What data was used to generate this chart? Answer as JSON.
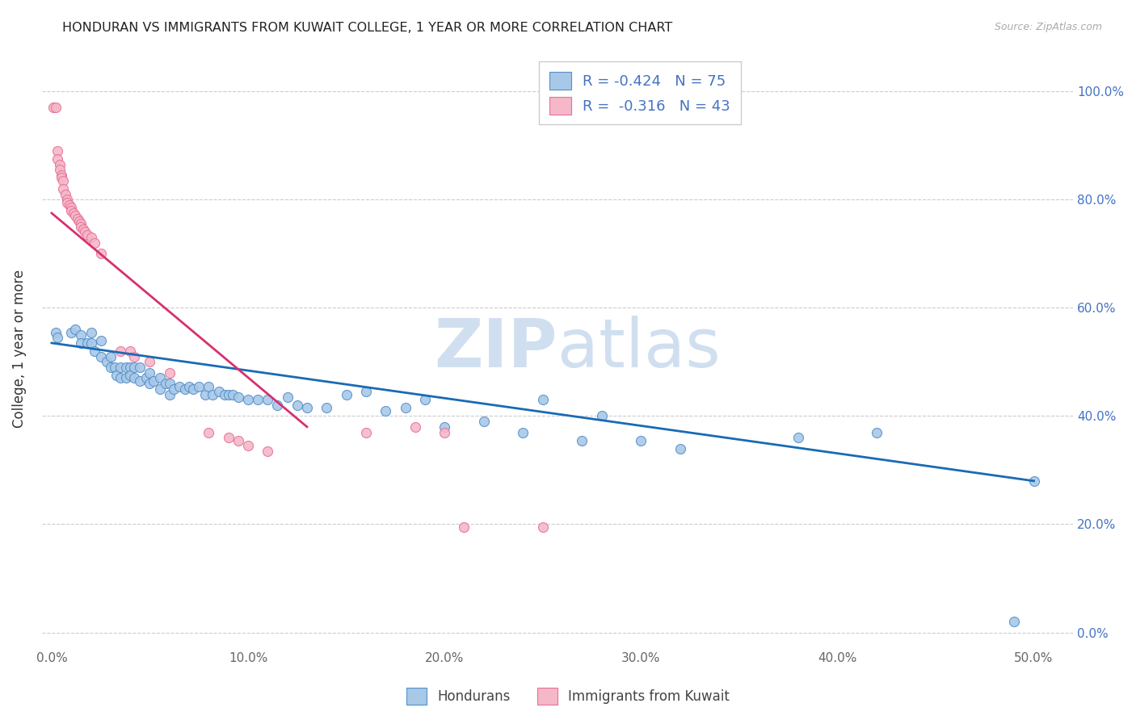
{
  "title": "HONDURAN VS IMMIGRANTS FROM KUWAIT COLLEGE, 1 YEAR OR MORE CORRELATION CHART",
  "source": "Source: ZipAtlas.com",
  "xlabel_ticks": [
    "0.0%",
    "10.0%",
    "20.0%",
    "30.0%",
    "40.0%",
    "50.0%"
  ],
  "ylabel_left_ticks": [
    "",
    "",
    "",
    "",
    "",
    ""
  ],
  "ylabel_right_ticks": [
    "0.0%",
    "20.0%",
    "40.0%",
    "60.0%",
    "80.0%",
    "100.0%"
  ],
  "xlim": [
    -0.005,
    0.52
  ],
  "ylim": [
    -0.03,
    1.08
  ],
  "ylabel": "College, 1 year or more",
  "legend_label1": "Hondurans",
  "legend_label2": "Immigrants from Kuwait",
  "R1": "-0.424",
  "N1": "75",
  "R2": "-0.316",
  "N2": "43",
  "blue_color": "#a8c8e8",
  "pink_color": "#f4b8c8",
  "blue_edge_color": "#5590c8",
  "pink_edge_color": "#e87098",
  "blue_line_color": "#1a6ab5",
  "pink_line_color": "#d83070",
  "watermark_color": "#d0dff0",
  "blue_scatter_x": [
    0.002,
    0.003,
    0.01,
    0.012,
    0.015,
    0.015,
    0.018,
    0.02,
    0.02,
    0.022,
    0.025,
    0.025,
    0.028,
    0.03,
    0.03,
    0.032,
    0.033,
    0.035,
    0.035,
    0.038,
    0.038,
    0.04,
    0.04,
    0.042,
    0.042,
    0.045,
    0.045,
    0.048,
    0.05,
    0.05,
    0.052,
    0.055,
    0.055,
    0.058,
    0.06,
    0.06,
    0.062,
    0.065,
    0.068,
    0.07,
    0.072,
    0.075,
    0.078,
    0.08,
    0.082,
    0.085,
    0.088,
    0.09,
    0.092,
    0.095,
    0.1,
    0.105,
    0.11,
    0.115,
    0.12,
    0.125,
    0.13,
    0.14,
    0.15,
    0.16,
    0.17,
    0.18,
    0.19,
    0.2,
    0.22,
    0.24,
    0.25,
    0.27,
    0.28,
    0.3,
    0.32,
    0.38,
    0.42,
    0.49,
    0.5
  ],
  "blue_scatter_y": [
    0.555,
    0.545,
    0.555,
    0.56,
    0.55,
    0.535,
    0.535,
    0.555,
    0.535,
    0.52,
    0.54,
    0.51,
    0.5,
    0.51,
    0.49,
    0.49,
    0.475,
    0.49,
    0.47,
    0.49,
    0.47,
    0.49,
    0.475,
    0.49,
    0.47,
    0.49,
    0.465,
    0.47,
    0.48,
    0.46,
    0.465,
    0.47,
    0.45,
    0.46,
    0.46,
    0.44,
    0.45,
    0.455,
    0.45,
    0.455,
    0.45,
    0.455,
    0.44,
    0.455,
    0.44,
    0.445,
    0.44,
    0.44,
    0.44,
    0.435,
    0.43,
    0.43,
    0.43,
    0.42,
    0.435,
    0.42,
    0.415,
    0.415,
    0.44,
    0.445,
    0.41,
    0.415,
    0.43,
    0.38,
    0.39,
    0.37,
    0.43,
    0.355,
    0.4,
    0.355,
    0.34,
    0.36,
    0.37,
    0.02,
    0.28
  ],
  "pink_scatter_x": [
    0.001,
    0.002,
    0.003,
    0.003,
    0.004,
    0.004,
    0.005,
    0.005,
    0.006,
    0.006,
    0.007,
    0.008,
    0.008,
    0.009,
    0.01,
    0.01,
    0.011,
    0.012,
    0.013,
    0.014,
    0.015,
    0.015,
    0.016,
    0.017,
    0.018,
    0.02,
    0.022,
    0.025,
    0.035,
    0.04,
    0.042,
    0.05,
    0.06,
    0.08,
    0.09,
    0.095,
    0.1,
    0.11,
    0.16,
    0.185,
    0.2,
    0.21,
    0.25
  ],
  "pink_scatter_y": [
    0.97,
    0.97,
    0.89,
    0.875,
    0.865,
    0.855,
    0.845,
    0.84,
    0.835,
    0.82,
    0.81,
    0.8,
    0.795,
    0.79,
    0.785,
    0.78,
    0.775,
    0.77,
    0.765,
    0.76,
    0.755,
    0.75,
    0.745,
    0.74,
    0.735,
    0.73,
    0.72,
    0.7,
    0.52,
    0.52,
    0.51,
    0.5,
    0.48,
    0.37,
    0.36,
    0.355,
    0.345,
    0.335,
    0.37,
    0.38,
    0.37,
    0.195,
    0.195
  ],
  "blue_line_x0": 0.0,
  "blue_line_x1": 0.5,
  "blue_line_y0": 0.535,
  "blue_line_y1": 0.28,
  "pink_line_x0": 0.0,
  "pink_line_x1": 0.13,
  "pink_line_y0": 0.775,
  "pink_line_y1": 0.38
}
